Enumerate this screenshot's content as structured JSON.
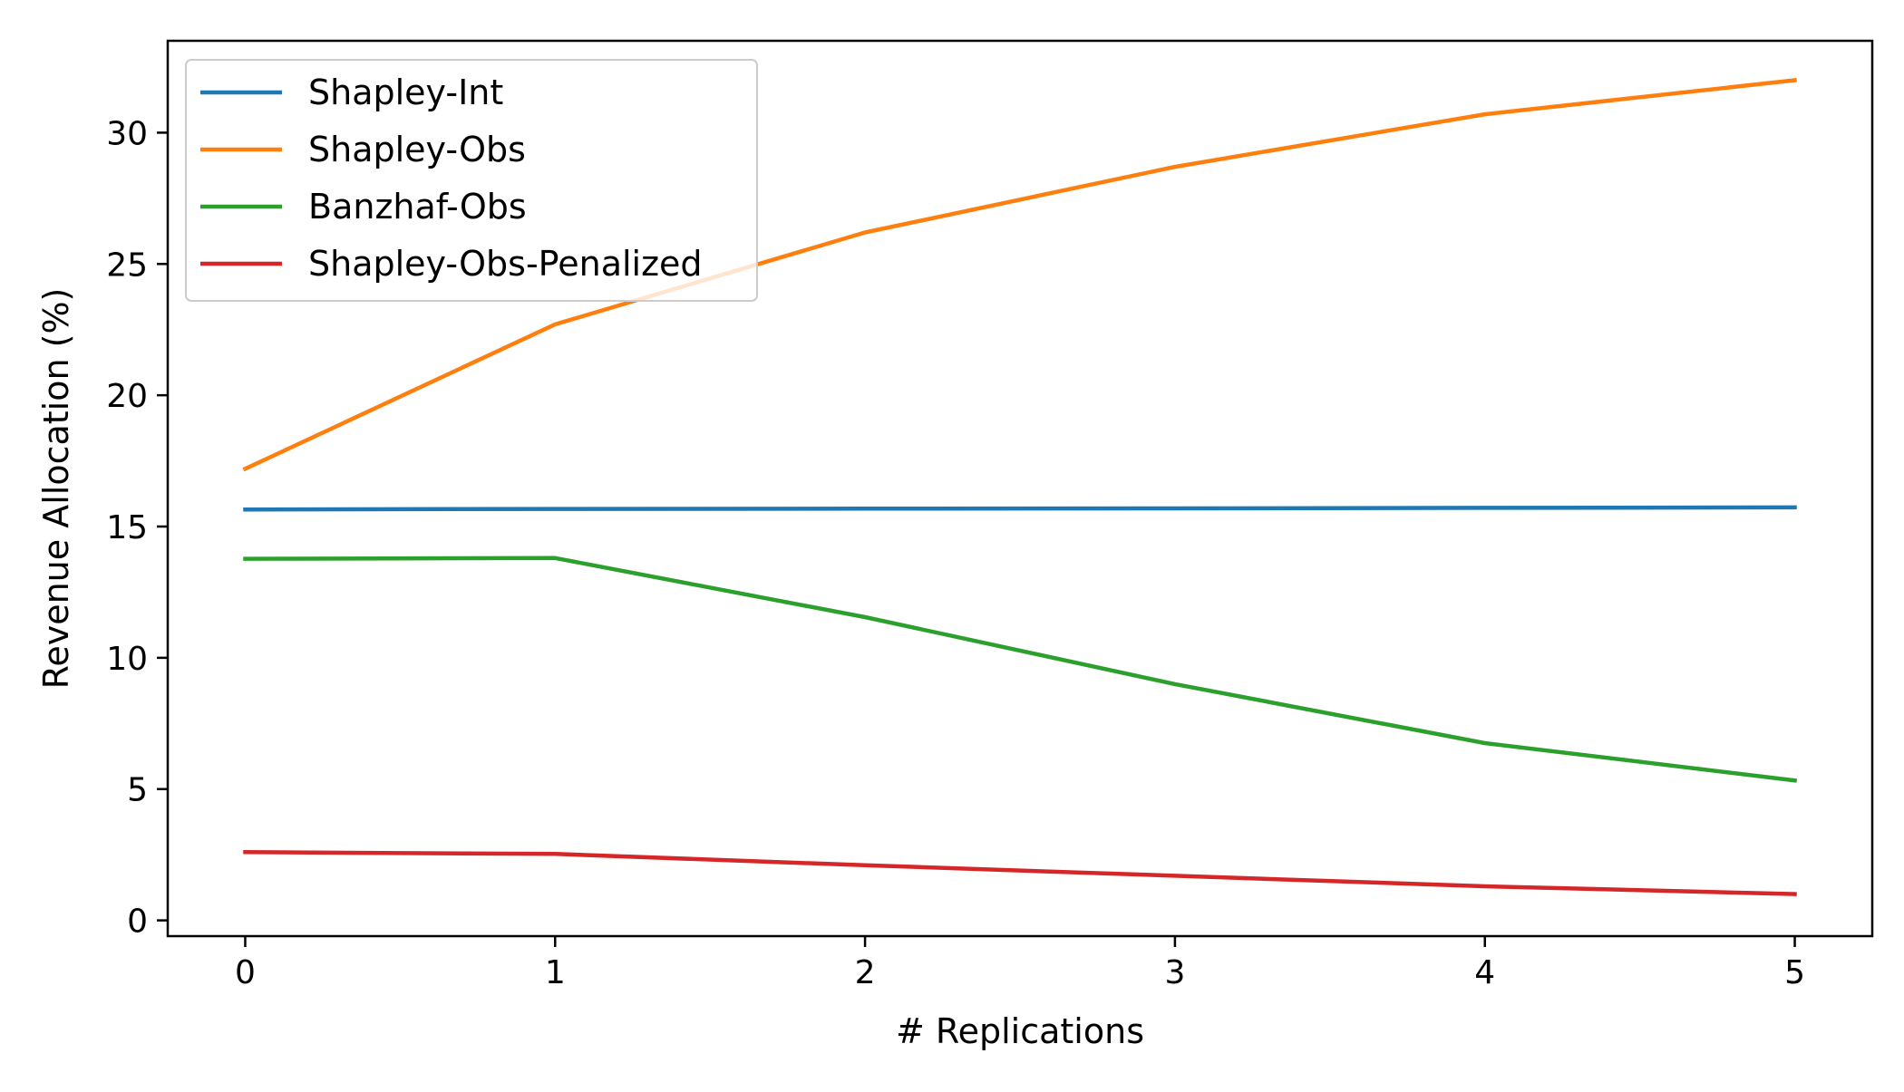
{
  "chart_data": {
    "type": "line",
    "title": "",
    "xlabel": "# Replications",
    "ylabel": "Revenue Allocation (%)",
    "x": [
      0,
      1,
      2,
      3,
      4,
      5
    ],
    "xlim": [
      -0.25,
      5.25
    ],
    "ylim": [
      -0.6,
      33.5
    ],
    "xticks": [
      0,
      1,
      2,
      3,
      4,
      5
    ],
    "yticks": [
      0,
      5,
      10,
      15,
      20,
      25,
      30
    ],
    "grid": false,
    "legend_position": "upper-left",
    "series": [
      {
        "name": "Shapley-Int",
        "color": "#1f77b4",
        "values": [
          15.65,
          15.67,
          15.68,
          15.69,
          15.71,
          15.73
        ]
      },
      {
        "name": "Shapley-Obs",
        "color": "#ff7f0e",
        "values": [
          17.2,
          22.7,
          26.2,
          28.7,
          30.7,
          32.0
        ]
      },
      {
        "name": "Banzhaf-Obs",
        "color": "#2ca02c",
        "values": [
          13.77,
          13.8,
          11.55,
          9.0,
          6.75,
          5.33
        ]
      },
      {
        "name": "Shapley-Obs-Penalized",
        "color": "#d62728",
        "values": [
          2.6,
          2.53,
          2.1,
          1.7,
          1.3,
          1.0
        ]
      }
    ]
  }
}
